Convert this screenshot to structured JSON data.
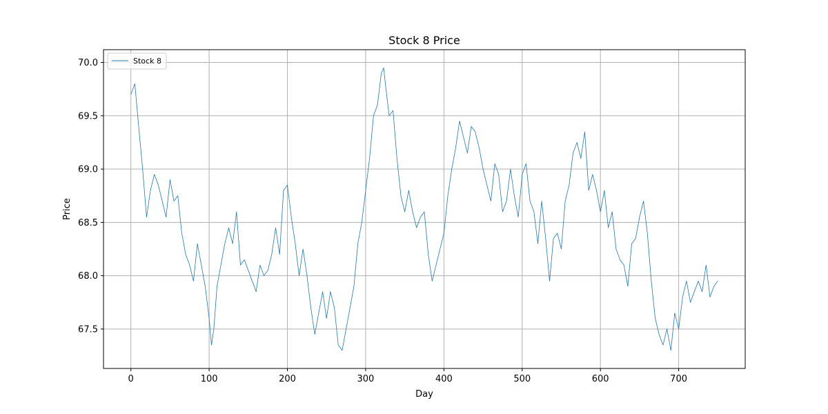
{
  "chart_data": {
    "type": "line",
    "title": "Stock 8 Price",
    "xlabel": "Day",
    "ylabel": "Price",
    "xlim": [
      -35,
      785
    ],
    "ylim": [
      67.13,
      70.12
    ],
    "xticks": [
      0,
      100,
      200,
      300,
      400,
      500,
      600,
      700
    ],
    "yticks": [
      67.5,
      68.0,
      68.5,
      69.0,
      69.5,
      70.0
    ],
    "ytick_labels": [
      "67.5",
      "68.0",
      "68.5",
      "69.0",
      "69.5",
      "70.0"
    ],
    "grid": true,
    "legend_position": "top-left",
    "series": [
      {
        "name": "Stock 8",
        "color": "#1f77b4",
        "x": [
          0,
          5,
          10,
          15,
          20,
          25,
          30,
          35,
          40,
          45,
          50,
          55,
          60,
          65,
          70,
          75,
          80,
          85,
          90,
          95,
          100,
          103,
          106,
          110,
          115,
          120,
          125,
          130,
          135,
          140,
          145,
          150,
          155,
          160,
          165,
          170,
          175,
          180,
          185,
          190,
          195,
          200,
          205,
          210,
          215,
          220,
          225,
          230,
          235,
          240,
          245,
          250,
          255,
          260,
          265,
          270,
          275,
          280,
          285,
          290,
          295,
          300,
          305,
          310,
          315,
          320,
          323,
          326,
          330,
          335,
          340,
          345,
          350,
          355,
          360,
          365,
          370,
          375,
          380,
          385,
          390,
          395,
          400,
          405,
          410,
          415,
          420,
          425,
          430,
          435,
          440,
          445,
          450,
          455,
          460,
          465,
          470,
          475,
          480,
          485,
          490,
          495,
          500,
          505,
          510,
          515,
          520,
          525,
          530,
          535,
          540,
          545,
          550,
          555,
          560,
          565,
          570,
          575,
          580,
          585,
          590,
          595,
          600,
          605,
          610,
          615,
          620,
          625,
          630,
          635,
          640,
          645,
          650,
          655,
          660,
          665,
          670,
          675,
          680,
          685,
          690,
          695,
          700,
          705,
          710,
          715,
          720,
          725,
          730,
          735,
          740,
          745,
          750
        ],
        "values": [
          69.7,
          69.8,
          69.4,
          69.0,
          68.55,
          68.8,
          68.95,
          68.85,
          68.7,
          68.55,
          68.9,
          68.7,
          68.75,
          68.4,
          68.2,
          68.1,
          67.95,
          68.3,
          68.1,
          67.9,
          67.6,
          67.35,
          67.5,
          67.9,
          68.1,
          68.3,
          68.45,
          68.3,
          68.6,
          68.1,
          68.15,
          68.05,
          67.95,
          67.85,
          68.1,
          68.0,
          68.05,
          68.2,
          68.45,
          68.2,
          68.8,
          68.85,
          68.55,
          68.3,
          68.0,
          68.25,
          68.0,
          67.7,
          67.45,
          67.65,
          67.85,
          67.6,
          67.85,
          67.7,
          67.35,
          67.3,
          67.5,
          67.7,
          67.9,
          68.3,
          68.5,
          68.8,
          69.1,
          69.5,
          69.6,
          69.9,
          69.95,
          69.75,
          69.5,
          69.55,
          69.1,
          68.75,
          68.6,
          68.8,
          68.6,
          68.45,
          68.55,
          68.6,
          68.2,
          67.95,
          68.1,
          68.25,
          68.4,
          68.75,
          69.0,
          69.2,
          69.45,
          69.3,
          69.15,
          69.4,
          69.35,
          69.2,
          69.0,
          68.85,
          68.7,
          69.05,
          68.95,
          68.6,
          68.7,
          69.0,
          68.75,
          68.55,
          68.95,
          69.05,
          68.7,
          68.6,
          68.3,
          68.7,
          68.35,
          67.95,
          68.35,
          68.4,
          68.25,
          68.7,
          68.85,
          69.15,
          69.25,
          69.1,
          69.35,
          68.8,
          68.95,
          68.8,
          68.6,
          68.8,
          68.45,
          68.6,
          68.25,
          68.15,
          68.1,
          67.9,
          68.3,
          68.35,
          68.55,
          68.7,
          68.4,
          67.95,
          67.6,
          67.45,
          67.35,
          67.5,
          67.3,
          67.65,
          67.5,
          67.8,
          67.95,
          67.75,
          67.85,
          67.95,
          67.85,
          68.1,
          67.8,
          67.9,
          67.95
        ]
      }
    ]
  }
}
